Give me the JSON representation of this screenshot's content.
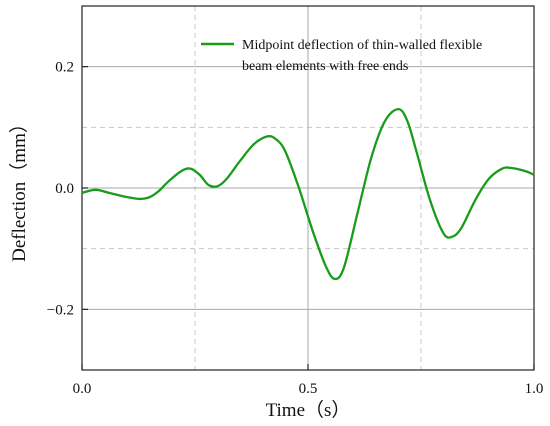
{
  "chart_data": {
    "type": "line",
    "xlabel": "Time（s）",
    "ylabel": "Deflection（mm）",
    "xlim": [
      0,
      1
    ],
    "ylim": [
      -0.3,
      0.3
    ],
    "x_ticks": [
      {
        "value": 0.0,
        "label": "0.0"
      },
      {
        "value": 0.5,
        "label": "0.5"
      },
      {
        "value": 1.0,
        "label": "1.0"
      }
    ],
    "y_ticks": [
      {
        "value": 0.2,
        "label": "0.2"
      },
      {
        "value": 0.0,
        "label": "0.0"
      },
      {
        "value": -0.2,
        "label": "−0.2"
      }
    ],
    "grid": "major solid, minor dashed",
    "legend_position": "top-right",
    "series": [
      {
        "name": "Midpoint deflection of thin-walled flexible beam elements with free ends",
        "color": "#1a9c1a",
        "x": [
          0.0,
          0.03,
          0.06,
          0.1,
          0.13,
          0.15,
          0.17,
          0.19,
          0.22,
          0.24,
          0.26,
          0.28,
          0.3,
          0.32,
          0.35,
          0.38,
          0.41,
          0.43,
          0.45,
          0.48,
          0.51,
          0.54,
          0.56,
          0.58,
          0.61,
          0.64,
          0.67,
          0.7,
          0.72,
          0.74,
          0.77,
          0.8,
          0.82,
          0.84,
          0.87,
          0.9,
          0.93,
          0.95,
          0.98,
          1.0
        ],
        "y": [
          -0.008,
          -0.003,
          -0.008,
          -0.015,
          -0.018,
          -0.015,
          -0.005,
          0.01,
          0.028,
          0.032,
          0.022,
          0.005,
          0.003,
          0.015,
          0.045,
          0.072,
          0.085,
          0.08,
          0.06,
          0.0,
          -0.07,
          -0.13,
          -0.15,
          -0.13,
          -0.04,
          0.05,
          0.11,
          0.13,
          0.11,
          0.06,
          -0.02,
          -0.075,
          -0.08,
          -0.065,
          -0.02,
          0.015,
          0.032,
          0.033,
          0.028,
          0.022
        ]
      }
    ]
  }
}
